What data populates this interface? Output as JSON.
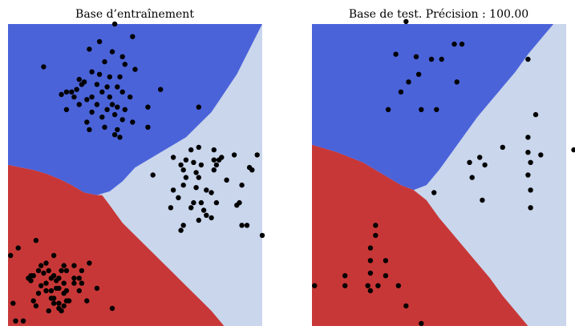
{
  "chart_data": [
    {
      "type": "scatter",
      "title": "Base d’entraînement",
      "xlim": [
        0,
        10
      ],
      "ylim": [
        0,
        12
      ],
      "grid": false,
      "region_colors": {
        "blue": "#4b63d9",
        "red": "#c83737",
        "light": "#c9d6ec"
      },
      "point_color": "#000000",
      "boundaries": {
        "blue_upper": [
          [
            0,
            6.4
          ],
          [
            0.5,
            6.3
          ],
          [
            1,
            6.2
          ],
          [
            1.5,
            6.05
          ],
          [
            2,
            5.85
          ],
          [
            2.5,
            5.6
          ],
          [
            3,
            5.3
          ],
          [
            3.5,
            5.2
          ],
          [
            4,
            5.35
          ],
          [
            4.5,
            5.75
          ],
          [
            5,
            6.3
          ],
          [
            6,
            6.9
          ],
          [
            7,
            7.5
          ],
          [
            8,
            8.5
          ],
          [
            9,
            10
          ],
          [
            9.5,
            11
          ],
          [
            10,
            12
          ]
        ],
        "red_lower": [
          [
            3.7,
            5.2
          ],
          [
            4,
            4.8
          ],
          [
            4.5,
            4.1
          ],
          [
            5,
            3.6
          ],
          [
            5.5,
            3.1
          ],
          [
            6,
            2.6
          ],
          [
            6.5,
            2.1
          ],
          [
            7,
            1.6
          ],
          [
            7.5,
            1.1
          ],
          [
            8,
            0.6
          ],
          [
            8.5,
            0
          ]
        ]
      },
      "points": [
        [
          4.2,
          12
        ],
        [
          3.6,
          11.3
        ],
        [
          4.9,
          11.5
        ],
        [
          3.2,
          11
        ],
        [
          4.1,
          10.9
        ],
        [
          4.5,
          10.7
        ],
        [
          3.8,
          10.5
        ],
        [
          4.6,
          10.4
        ],
        [
          5,
          10.2
        ],
        [
          1.4,
          10.3
        ],
        [
          3.3,
          10.1
        ],
        [
          2.8,
          9.8
        ],
        [
          3.6,
          10
        ],
        [
          4,
          9.9
        ],
        [
          4.4,
          9.9
        ],
        [
          3,
          9.7
        ],
        [
          2.9,
          9.6
        ],
        [
          3.5,
          9.6
        ],
        [
          3.9,
          9.5
        ],
        [
          4.3,
          9.5
        ],
        [
          2.3,
          9.3
        ],
        [
          2.7,
          9.4
        ],
        [
          2.5,
          9.3
        ],
        [
          3.7,
          9.3
        ],
        [
          4.5,
          9.3
        ],
        [
          2.1,
          9.2
        ],
        [
          2.6,
          9.1
        ],
        [
          3.1,
          9
        ],
        [
          3.3,
          9.1
        ],
        [
          4,
          9.1
        ],
        [
          4.8,
          9.1
        ],
        [
          6,
          9.4
        ],
        [
          2.8,
          8.8
        ],
        [
          3.5,
          8.8
        ],
        [
          4.1,
          8.8
        ],
        [
          4.3,
          8.7
        ],
        [
          2.3,
          8.6
        ],
        [
          3.9,
          8.6
        ],
        [
          4.6,
          8.6
        ],
        [
          5.5,
          8.7
        ],
        [
          3.3,
          8.5
        ],
        [
          4.2,
          8.4
        ],
        [
          3.7,
          8.3
        ],
        [
          4.5,
          8.2
        ],
        [
          3.1,
          8.1
        ],
        [
          4.9,
          8.1
        ],
        [
          3.8,
          7.9
        ],
        [
          4.3,
          7.8
        ],
        [
          5.5,
          7.9
        ],
        [
          3.2,
          7.8
        ],
        [
          4.2,
          7.6
        ],
        [
          4.4,
          7.5
        ],
        [
          7.5,
          8.7
        ],
        [
          7.2,
          7
        ],
        [
          7.5,
          7.1
        ],
        [
          8.1,
          7
        ],
        [
          8.4,
          6.7
        ],
        [
          8.9,
          6.8
        ],
        [
          9.8,
          6.8
        ],
        [
          6.5,
          6.7
        ],
        [
          7,
          6.6
        ],
        [
          7.3,
          6.5
        ],
        [
          8.1,
          6.6
        ],
        [
          8.3,
          6.6
        ],
        [
          6.8,
          6.4
        ],
        [
          7.6,
          6.4
        ],
        [
          8.2,
          6.4
        ],
        [
          9.5,
          6.3
        ],
        [
          6.9,
          6.2
        ],
        [
          7.4,
          6.1
        ],
        [
          8.1,
          6.2
        ],
        [
          9.6,
          6.2
        ],
        [
          5.7,
          6
        ],
        [
          7,
          5.9
        ],
        [
          7.5,
          5.9
        ],
        [
          8.6,
          5.8
        ],
        [
          6.9,
          5.6
        ],
        [
          7.4,
          5.5
        ],
        [
          9.2,
          5.6
        ],
        [
          6.5,
          5.4
        ],
        [
          7.8,
          5.4
        ],
        [
          8,
          5.3
        ],
        [
          6.7,
          5.1
        ],
        [
          7.3,
          4.9
        ],
        [
          7.6,
          4.9
        ],
        [
          8.2,
          4.9
        ],
        [
          9.1,
          4.9
        ],
        [
          6.4,
          4.7
        ],
        [
          7.2,
          4.7
        ],
        [
          7.7,
          4.6
        ],
        [
          9,
          4.8
        ],
        [
          7.8,
          4.4
        ],
        [
          8,
          4.3
        ],
        [
          7.5,
          4.2
        ],
        [
          6.9,
          4
        ],
        [
          9.2,
          4
        ],
        [
          9.4,
          4
        ],
        [
          6.8,
          3.8
        ],
        [
          10,
          3.6
        ],
        [
          1.1,
          3.4
        ],
        [
          0.4,
          3.1
        ],
        [
          0.1,
          2.8
        ],
        [
          1.8,
          2.8
        ],
        [
          1.5,
          2.5
        ],
        [
          1.3,
          2.4
        ],
        [
          2.2,
          2.4
        ],
        [
          2.6,
          2.4
        ],
        [
          3.2,
          2.5
        ],
        [
          1.6,
          2.2
        ],
        [
          1.2,
          2.2
        ],
        [
          2.1,
          2.2
        ],
        [
          2.3,
          2.2
        ],
        [
          2.9,
          2.2
        ],
        [
          1.4,
          2.1
        ],
        [
          1.8,
          2
        ],
        [
          0.9,
          2
        ],
        [
          1,
          2
        ],
        [
          2,
          1.9
        ],
        [
          2.6,
          1.9
        ],
        [
          2.8,
          1.9
        ],
        [
          0.8,
          1.9
        ],
        [
          1.7,
          1.9
        ],
        [
          1.9,
          1.8
        ],
        [
          0.9,
          1.8
        ],
        [
          1.5,
          1.7
        ],
        [
          2.2,
          1.7
        ],
        [
          1.3,
          1.6
        ],
        [
          2.6,
          1.7
        ],
        [
          2.9,
          1.7
        ],
        [
          1.9,
          1.5
        ],
        [
          2,
          1.5
        ],
        [
          1.5,
          1.4
        ],
        [
          1.7,
          1.4
        ],
        [
          2.3,
          1.4
        ],
        [
          2.8,
          1.4
        ],
        [
          1.2,
          1.3
        ],
        [
          2.2,
          1.3
        ],
        [
          3.5,
          1.5
        ],
        [
          1.7,
          1.1
        ],
        [
          1.8,
          1.1
        ],
        [
          2.3,
          1
        ],
        [
          2.4,
          1
        ],
        [
          3.1,
          1
        ],
        [
          1,
          1
        ],
        [
          2,
          0.9
        ],
        [
          1.8,
          0.9
        ],
        [
          2.2,
          0.8
        ],
        [
          1.1,
          0.8
        ],
        [
          0.2,
          0.9
        ],
        [
          2,
          0.7
        ],
        [
          1.6,
          0.6
        ],
        [
          2.1,
          0.6
        ],
        [
          4.1,
          0.7
        ],
        [
          0.6,
          0.2
        ],
        [
          0.3,
          0.2
        ]
      ]
    },
    {
      "type": "scatter",
      "title": "Base de test.  Précision : 100.00",
      "xlim": [
        0,
        10
      ],
      "ylim": [
        0,
        12
      ],
      "grid": false,
      "region_colors": {
        "blue": "#4b63d9",
        "red": "#c83737",
        "light": "#c9d6ec"
      },
      "point_color": "#000000",
      "boundaries": {
        "blue_upper": [
          [
            0,
            7.2
          ],
          [
            0.5,
            7.05
          ],
          [
            1,
            6.9
          ],
          [
            1.5,
            6.7
          ],
          [
            2,
            6.5
          ],
          [
            2.5,
            6.2
          ],
          [
            3,
            5.9
          ],
          [
            3.5,
            5.6
          ],
          [
            4,
            5.4
          ],
          [
            4.5,
            5.6
          ],
          [
            5,
            6.2
          ],
          [
            5.5,
            6.9
          ],
          [
            6,
            7.6
          ],
          [
            6.5,
            8.3
          ],
          [
            7,
            8.9
          ],
          [
            7.5,
            9.5
          ],
          [
            8,
            10.1
          ],
          [
            8.5,
            10.8
          ],
          [
            9,
            11.4
          ],
          [
            9.5,
            12
          ]
        ],
        "red_lower": [
          [
            4,
            5.4
          ],
          [
            4.5,
            5
          ],
          [
            5,
            4.3
          ],
          [
            5.5,
            3.7
          ],
          [
            6,
            3.1
          ],
          [
            6.5,
            2.5
          ],
          [
            7,
            1.9
          ],
          [
            7.5,
            1.2
          ],
          [
            8,
            0.6
          ],
          [
            8.5,
            0
          ]
        ]
      },
      "points": [
        [
          3.7,
          12.1
        ],
        [
          5.6,
          11.2
        ],
        [
          5.9,
          11.2
        ],
        [
          3.3,
          10.8
        ],
        [
          4.1,
          10.7
        ],
        [
          4.7,
          10.6
        ],
        [
          5.1,
          10.6
        ],
        [
          8.5,
          10.6
        ],
        [
          4.2,
          10
        ],
        [
          3.8,
          9.7
        ],
        [
          5.7,
          9.7
        ],
        [
          3.5,
          9.3
        ],
        [
          3,
          8.6
        ],
        [
          4.3,
          8.6
        ],
        [
          4.9,
          8.6
        ],
        [
          8.8,
          8.4
        ],
        [
          8.5,
          7.5
        ],
        [
          7.5,
          7.1
        ],
        [
          8.5,
          6.9
        ],
        [
          6.6,
          6.7
        ],
        [
          9,
          6.8
        ],
        [
          10.3,
          7
        ],
        [
          6.2,
          6.5
        ],
        [
          6.8,
          6.4
        ],
        [
          8.6,
          6.5
        ],
        [
          6.3,
          5.9
        ],
        [
          8.5,
          6
        ],
        [
          8.6,
          5.4
        ],
        [
          4.8,
          5.3
        ],
        [
          6.7,
          5
        ],
        [
          8.6,
          4.7
        ],
        [
          2.5,
          4
        ],
        [
          2.5,
          3.6
        ],
        [
          2.3,
          3.1
        ],
        [
          2.3,
          2.6
        ],
        [
          2.9,
          2.6
        ],
        [
          1.3,
          2
        ],
        [
          2.3,
          2.1
        ],
        [
          2.9,
          2
        ],
        [
          0.1,
          1.6
        ],
        [
          1.3,
          1.6
        ],
        [
          2.2,
          1.6
        ],
        [
          2.6,
          1.6
        ],
        [
          3.4,
          1.6
        ],
        [
          2.3,
          1.4
        ],
        [
          3.7,
          0.8
        ],
        [
          4.3,
          0.1
        ]
      ]
    }
  ]
}
